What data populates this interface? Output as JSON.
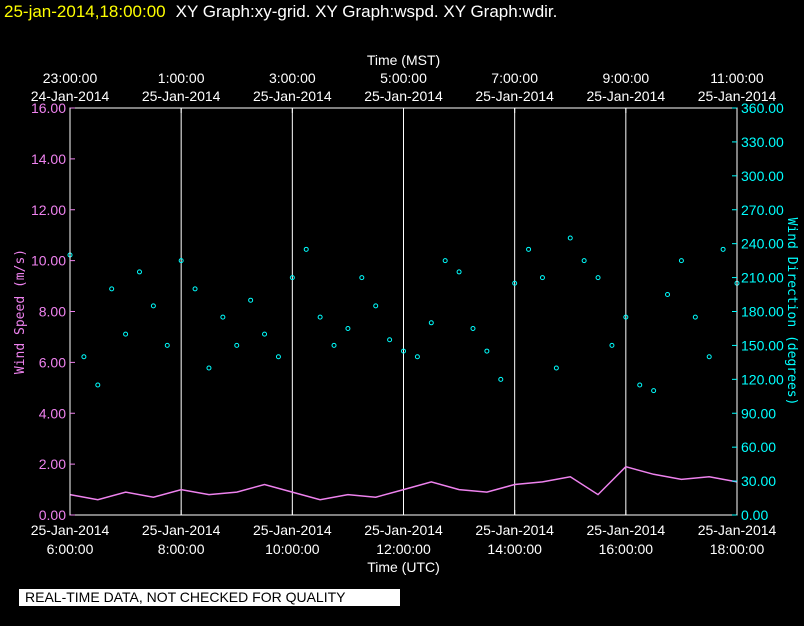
{
  "header": {
    "date_time": "25-jan-2014,18:00:00",
    "graphs": "XY Graph:xy-grid.  XY Graph:wspd.  XY Graph:wdir."
  },
  "banner": "REAL-TIME DATA, NOT CHECKED FOR QUALITY",
  "colors": {
    "background": "#000000",
    "axes": "#ffffff",
    "wind_speed": "#ee82ee",
    "wind_direction": "#00ffff",
    "header_date": "#ffff00"
  },
  "chart_data": {
    "type": "scatter",
    "title": "",
    "x_top_label": "Time (MST)",
    "x_bottom_label": "Time (UTC)",
    "y_left_label": "Wind Speed (m/s)",
    "y_right_label": "Wind Direction (degrees)",
    "x_top_ticks": [
      {
        "time": "23:00:00",
        "date": "24-Jan-2014"
      },
      {
        "time": "1:00:00",
        "date": "25-Jan-2014"
      },
      {
        "time": "3:00:00",
        "date": "25-Jan-2014"
      },
      {
        "time": "5:00:00",
        "date": "25-Jan-2014"
      },
      {
        "time": "7:00:00",
        "date": "25-Jan-2014"
      },
      {
        "time": "9:00:00",
        "date": "25-Jan-2014"
      },
      {
        "time": "11:00:00",
        "date": "25-Jan-2014"
      }
    ],
    "x_bottom_ticks": [
      {
        "date": "25-Jan-2014",
        "time": "6:00:00"
      },
      {
        "date": "25-Jan-2014",
        "time": "8:00:00"
      },
      {
        "date": "25-Jan-2014",
        "time": "10:00:00"
      },
      {
        "date": "25-Jan-2014",
        "time": "12:00:00"
      },
      {
        "date": "25-Jan-2014",
        "time": "14:00:00"
      },
      {
        "date": "25-Jan-2014",
        "time": "16:00:00"
      },
      {
        "date": "25-Jan-2014",
        "time": "18:00:00"
      }
    ],
    "y_left_ticks": [
      "0.00",
      "2.00",
      "4.00",
      "6.00",
      "8.00",
      "10.00",
      "12.00",
      "14.00",
      "16.00"
    ],
    "y_right_ticks": [
      "0.00",
      "30.00",
      "60.00",
      "90.00",
      "120.00",
      "150.00",
      "180.00",
      "210.00",
      "240.00",
      "270.00",
      "300.00",
      "330.00",
      "360.00"
    ],
    "x_range_utc_hours": [
      6,
      18
    ],
    "ylim_left": [
      0,
      16
    ],
    "ylim_right": [
      0,
      360
    ],
    "grid": "vertical",
    "series": [
      {
        "name": "Wind Speed",
        "axis": "left",
        "style": "line",
        "x_hours": [
          6.0,
          6.5,
          7.0,
          7.5,
          8.0,
          8.5,
          9.0,
          9.5,
          10.0,
          10.5,
          11.0,
          11.5,
          12.0,
          12.5,
          13.0,
          13.5,
          14.0,
          14.5,
          15.0,
          15.5,
          16.0,
          16.5,
          17.0,
          17.5,
          18.0
        ],
        "values": [
          0.8,
          0.6,
          0.9,
          0.7,
          1.0,
          0.8,
          0.9,
          1.2,
          0.9,
          0.6,
          0.8,
          0.7,
          1.0,
          1.3,
          1.0,
          0.9,
          1.2,
          1.3,
          1.5,
          0.8,
          1.9,
          1.6,
          1.4,
          1.5,
          1.3
        ]
      },
      {
        "name": "Wind Direction",
        "axis": "right",
        "style": "markers",
        "x_hours": [
          6.0,
          6.25,
          6.5,
          6.75,
          7.0,
          7.25,
          7.5,
          7.75,
          8.0,
          8.25,
          8.5,
          8.75,
          9.0,
          9.25,
          9.5,
          9.75,
          10.0,
          10.25,
          10.5,
          10.75,
          11.0,
          11.25,
          11.5,
          11.75,
          12.0,
          12.25,
          12.5,
          12.75,
          13.0,
          13.25,
          13.5,
          13.75,
          14.0,
          14.25,
          14.5,
          14.75,
          15.0,
          15.25,
          15.5,
          15.75,
          16.0,
          16.25,
          16.5,
          16.75,
          17.0,
          17.25,
          17.5,
          17.75,
          18.0
        ],
        "values": [
          230,
          140,
          115,
          200,
          160,
          215,
          185,
          150,
          225,
          200,
          130,
          175,
          150,
          190,
          160,
          140,
          210,
          235,
          175,
          150,
          165,
          210,
          185,
          155,
          145,
          140,
          170,
          225,
          215,
          165,
          145,
          120,
          205,
          235,
          210,
          130,
          245,
          225,
          210,
          150,
          175,
          115,
          110,
          195,
          225,
          175,
          140,
          235,
          205
        ]
      }
    ]
  }
}
